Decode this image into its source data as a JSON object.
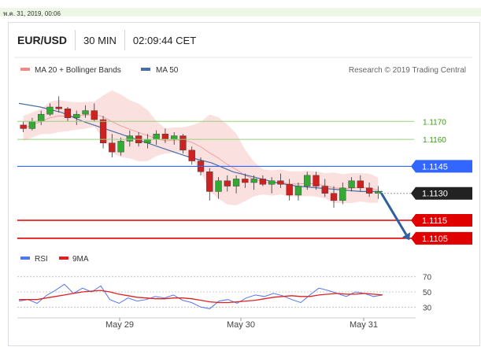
{
  "timestamp": "พ.ค. 31, 2019, 00:06",
  "header": {
    "pair": "EUR/USD",
    "timeframe": "30 MIN",
    "clock": "02:09:44 CET"
  },
  "legend": {
    "bb_label": "MA 20 + Bollinger Bands",
    "ma50_label": "MA 50",
    "credit": "Research © 2019 Trading Central"
  },
  "rsi_legend": {
    "rsi_label": "RSI",
    "ma_label": "9MA"
  },
  "colors": {
    "up": "#33aa33",
    "down": "#cc2222",
    "band": "#f7c7c7",
    "ma50": "#4a6fa5",
    "blue_line": "#3366ff",
    "red_line": "#e00000",
    "green_line": "#9ad17a",
    "arrow": "#2f5f9e",
    "rsi": "#5577ee",
    "rsi_ma": "#dd2222"
  },
  "chart_data": [
    {
      "type": "candlestick",
      "title": "EUR/USD",
      "x_ticks": [
        "May 29",
        "May 30",
        "May 31"
      ],
      "ylim": [
        1.1101,
        1.1192
      ],
      "series": [
        {
          "name": "MA 20 + Bollinger Bands",
          "kind": "band"
        },
        {
          "name": "MA 50",
          "kind": "line",
          "values": [
            1.118,
            1.1178,
            1.1175,
            1.117,
            1.1166,
            1.1162,
            1.1158,
            1.1154,
            1.115,
            1.1147,
            1.1142,
            1.1139,
            1.1136,
            1.1134,
            1.1133,
            1.1132,
            1.1131,
            1.1131
          ]
        }
      ],
      "candles_ohlc": [
        [
          1.1168,
          1.117,
          1.1164,
          1.1166
        ],
        [
          1.1166,
          1.1172,
          1.1165,
          1.117
        ],
        [
          1.117,
          1.1176,
          1.1168,
          1.1174
        ],
        [
          1.1174,
          1.118,
          1.1173,
          1.1178
        ],
        [
          1.1178,
          1.1184,
          1.1175,
          1.1177
        ],
        [
          1.1177,
          1.1178,
          1.117,
          1.1172
        ],
        [
          1.1172,
          1.1176,
          1.1168,
          1.1174
        ],
        [
          1.1174,
          1.1179,
          1.1172,
          1.1176
        ],
        [
          1.1176,
          1.118,
          1.117,
          1.1171
        ],
        [
          1.1171,
          1.1173,
          1.1155,
          1.1158
        ],
        [
          1.1158,
          1.1163,
          1.115,
          1.1153
        ],
        [
          1.1153,
          1.1161,
          1.1151,
          1.1159
        ],
        [
          1.1159,
          1.1165,
          1.1156,
          1.1162
        ],
        [
          1.1162,
          1.1164,
          1.1156,
          1.1158
        ],
        [
          1.1158,
          1.1163,
          1.1155,
          1.116
        ],
        [
          1.116,
          1.1165,
          1.1157,
          1.1163
        ],
        [
          1.1163,
          1.1166,
          1.1158,
          1.116
        ],
        [
          1.116,
          1.1164,
          1.1157,
          1.1162
        ],
        [
          1.1162,
          1.1163,
          1.1152,
          1.1154
        ],
        [
          1.1154,
          1.1156,
          1.1146,
          1.1148
        ],
        [
          1.1148,
          1.115,
          1.114,
          1.1142
        ],
        [
          1.1142,
          1.1144,
          1.1126,
          1.1131
        ],
        [
          1.1131,
          1.1139,
          1.1127,
          1.1137
        ],
        [
          1.1137,
          1.114,
          1.1131,
          1.1134
        ],
        [
          1.1134,
          1.114,
          1.113,
          1.1138
        ],
        [
          1.1138,
          1.1141,
          1.1133,
          1.1136
        ],
        [
          1.1136,
          1.114,
          1.1132,
          1.1138
        ],
        [
          1.1138,
          1.114,
          1.1134,
          1.1135
        ],
        [
          1.1135,
          1.1139,
          1.113,
          1.1137
        ],
        [
          1.1137,
          1.1141,
          1.1133,
          1.1135
        ],
        [
          1.1135,
          1.1138,
          1.1126,
          1.1129
        ],
        [
          1.1129,
          1.1136,
          1.1126,
          1.1134
        ],
        [
          1.1134,
          1.1142,
          1.1132,
          1.114
        ],
        [
          1.114,
          1.1142,
          1.1132,
          1.1134
        ],
        [
          1.1134,
          1.1138,
          1.1128,
          1.113
        ],
        [
          1.113,
          1.1134,
          1.1122,
          1.1126
        ],
        [
          1.1126,
          1.1136,
          1.1124,
          1.1133
        ],
        [
          1.1133,
          1.1139,
          1.1131,
          1.1137
        ],
        [
          1.1137,
          1.114,
          1.1131,
          1.1133
        ],
        [
          1.1133,
          1.1136,
          1.1128,
          1.113
        ],
        [
          1.113,
          1.1134,
          1.1127,
          1.1131
        ]
      ],
      "levels": [
        {
          "label": "1.1170",
          "value": 1.117,
          "style": "support-green"
        },
        {
          "label": "1.1160",
          "value": 1.116,
          "style": "support-green"
        },
        {
          "label": "1.1145",
          "value": 1.1145,
          "style": "resistance-blue"
        },
        {
          "label": "1.1130",
          "value": 1.113,
          "style": "last-price"
        },
        {
          "label": "1.1115",
          "value": 1.1115,
          "style": "target-red"
        },
        {
          "label": "1.1105",
          "value": 1.1105,
          "style": "target-red"
        }
      ]
    },
    {
      "type": "line",
      "title": "RSI",
      "y_ticks": [
        "70",
        "50",
        "30"
      ],
      "ylim": [
        20,
        80
      ],
      "series": [
        {
          "name": "RSI",
          "values": [
            38,
            40,
            35,
            45,
            52,
            60,
            48,
            55,
            50,
            58,
            40,
            35,
            42,
            38,
            40,
            44,
            42,
            46,
            39,
            36,
            30,
            28,
            38,
            40,
            35,
            42,
            46,
            44,
            48,
            45,
            40,
            36,
            46,
            55,
            52,
            48,
            44,
            50,
            48,
            44,
            46
          ]
        },
        {
          "name": "9MA",
          "values": [
            40,
            40,
            40,
            42,
            44,
            46,
            48,
            50,
            51,
            52,
            50,
            47,
            45,
            43,
            42,
            41,
            41,
            42,
            42,
            41,
            39,
            37,
            36,
            36,
            37,
            38,
            39,
            41,
            43,
            44,
            45,
            44,
            44,
            46,
            47,
            48,
            47,
            47,
            48,
            47,
            46
          ]
        }
      ]
    }
  ]
}
